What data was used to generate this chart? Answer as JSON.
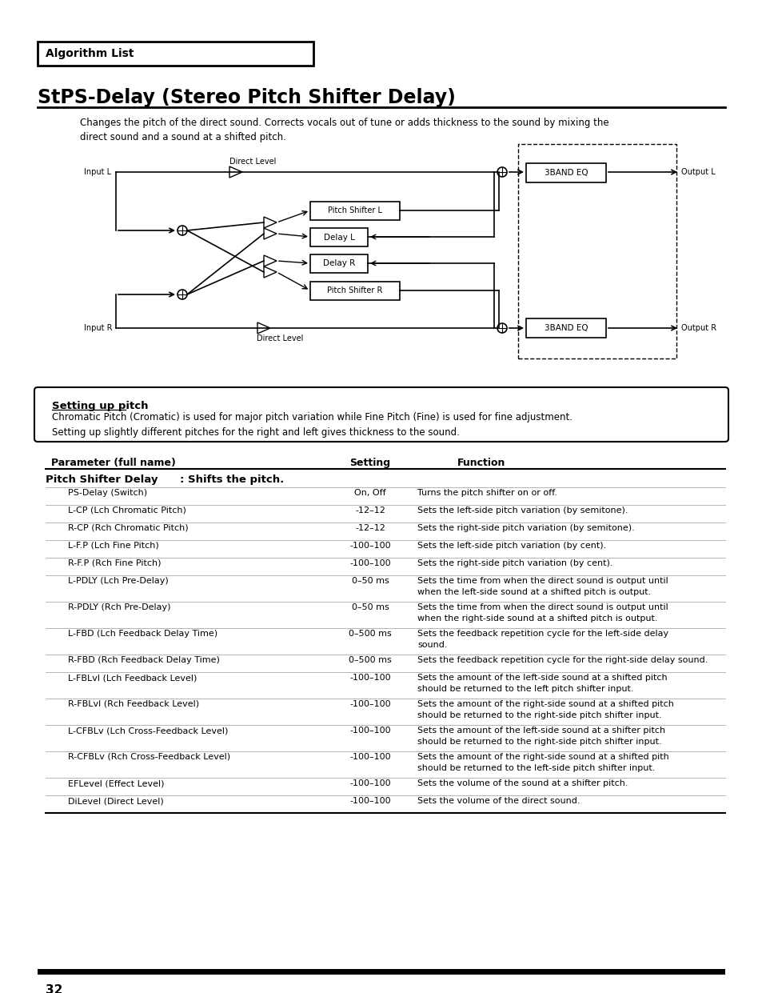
{
  "title": "StPS-Delay (Stereo Pitch Shifter Delay)",
  "algorithm_list_label": "Algorithm List",
  "description": "Changes the pitch of the direct sound. Corrects vocals out of tune or adds thickness to the sound by mixing the\ndirect sound and a sound at a shifted pitch.",
  "setting_up_title": "Setting up pitch",
  "setting_up_text": "Chromatic Pitch (Cromatic) is used for major pitch variation while Fine Pitch (Fine) is used for fine adjustment.\nSetting up slightly different pitches for the right and left gives thickness to the sound.",
  "table_header": [
    "Parameter (full name)",
    "Setting",
    "Function"
  ],
  "table_group_label": "Pitch Shifter Delay",
  "table_group_desc": ": Shifts the pitch.",
  "table_rows": [
    [
      "PS-Delay (Switch)",
      "On, Off",
      "Turns the pitch shifter on or off."
    ],
    [
      "L-CP (Lch Chromatic Pitch)",
      "-12–12",
      "Sets the left-side pitch variation (by semitone)."
    ],
    [
      "R-CP (Rch Chromatic Pitch)",
      "-12–12",
      "Sets the right-side pitch variation (by semitone)."
    ],
    [
      "L-F.P (Lch Fine Pitch)",
      "-100–100",
      "Sets the left-side pitch variation (by cent)."
    ],
    [
      "R-F.P (Rch Fine Pitch)",
      "-100–100",
      "Sets the right-side pitch variation (by cent)."
    ],
    [
      "L-PDLY (Lch Pre-Delay)",
      "0–50 ms",
      "Sets the time from when the direct sound is output until\nwhen the left-side sound at a shifted pitch is output."
    ],
    [
      "R-PDLY (Rch Pre-Delay)",
      "0–50 ms",
      "Sets the time from when the direct sound is output until\nwhen the right-side sound at a shifted pitch is output."
    ],
    [
      "L-FBD (Lch Feedback Delay Time)",
      "0–500 ms",
      "Sets the feedback repetition cycle for the left-side delay\nsound."
    ],
    [
      "R-FBD (Rch Feedback Delay Time)",
      "0–500 ms",
      "Sets the feedback repetition cycle for the right-side delay sound."
    ],
    [
      "L-FBLvl (Lch Feedback Level)",
      "-100–100",
      "Sets the amount of the left-side sound at a shifted pitch\nshould be returned to the left pitch shifter input."
    ],
    [
      "R-FBLvl (Rch Feedback Level)",
      "-100–100",
      "Sets the amount of the right-side sound at a shifted pitch\nshould be returned to the right-side pitch shifter input."
    ],
    [
      "L-CFBLv (Lch Cross-Feedback Level)",
      "-100–100",
      "Sets the amount of the left-side sound at a shifter pitch\nshould be returned to the right-side pitch shifter input."
    ],
    [
      "R-CFBLv (Rch Cross-Feedback Level)",
      "-100–100",
      "Sets the amount of the right-side sound at a shifted pith\nshould be returned to the left-side pitch shifter input."
    ],
    [
      "EFLevel (Effect Level)",
      "-100–100",
      "Sets the volume of the sound at a shifter pitch."
    ],
    [
      "DiLevel (Direct Level)",
      "-100–100",
      "Sets the volume of the direct sound."
    ]
  ],
  "page_number": "32",
  "bg_color": "#ffffff",
  "text_color": "#000000"
}
